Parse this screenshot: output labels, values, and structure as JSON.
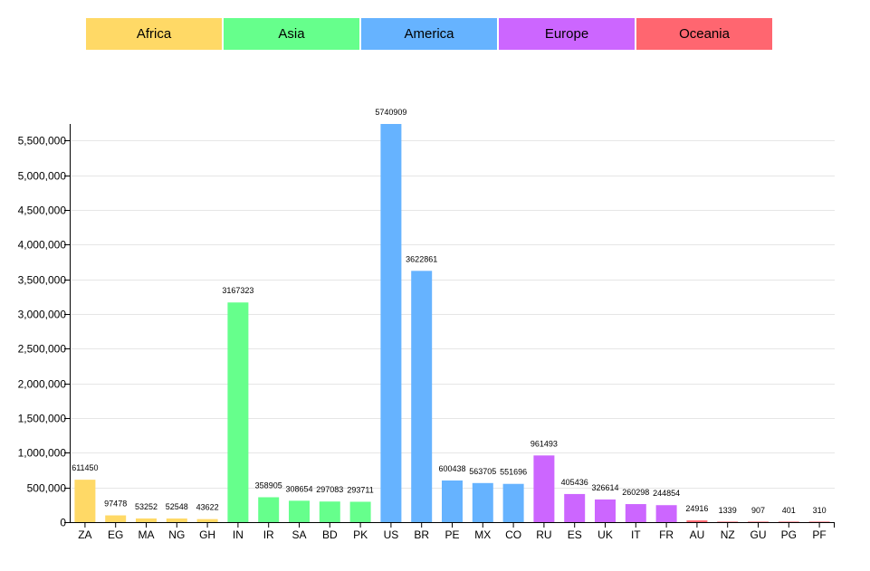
{
  "legend": [
    {
      "label": "Africa",
      "color": "#FFD966"
    },
    {
      "label": "Asia",
      "color": "#66FF8C"
    },
    {
      "label": "America",
      "color": "#66B3FF"
    },
    {
      "label": "Europe",
      "color": "#CC66FF"
    },
    {
      "label": "Oceania",
      "color": "#FF6670"
    }
  ],
  "chart_data": {
    "type": "bar",
    "categories": [
      "ZA",
      "EG",
      "MA",
      "NG",
      "GH",
      "IN",
      "IR",
      "SA",
      "BD",
      "PK",
      "US",
      "BR",
      "PE",
      "MX",
      "CO",
      "RU",
      "ES",
      "UK",
      "IT",
      "FR",
      "AU",
      "NZ",
      "GU",
      "PG",
      "PF"
    ],
    "values": [
      611450,
      97478,
      53252,
      52548,
      43622,
      3167323,
      358905,
      308654,
      297083,
      293711,
      5740909,
      3622861,
      600438,
      563705,
      551696,
      961493,
      405436,
      326614,
      260298,
      244854,
      24916,
      1339,
      907,
      401,
      310
    ],
    "regions": [
      "Africa",
      "Africa",
      "Africa",
      "Africa",
      "Africa",
      "Asia",
      "Asia",
      "Asia",
      "Asia",
      "Asia",
      "America",
      "America",
      "America",
      "America",
      "America",
      "Europe",
      "Europe",
      "Europe",
      "Europe",
      "Europe",
      "Oceania",
      "Oceania",
      "Oceania",
      "Oceania",
      "Oceania"
    ],
    "y_ticks": [
      0,
      500000,
      1000000,
      1500000,
      2000000,
      2500000,
      3000000,
      3500000,
      4000000,
      4500000,
      5000000,
      5500000
    ],
    "y_tick_labels": [
      "0",
      "500,000",
      "1,000,000",
      "1,500,000",
      "2,000,000",
      "2,500,000",
      "3,000,000",
      "3,500,000",
      "4,000,000",
      "4,500,000",
      "5,000,000",
      "5,500,000"
    ],
    "ylim": [
      0,
      5740909
    ],
    "grid": true,
    "title": "",
    "xlabel": "",
    "ylabel": ""
  }
}
